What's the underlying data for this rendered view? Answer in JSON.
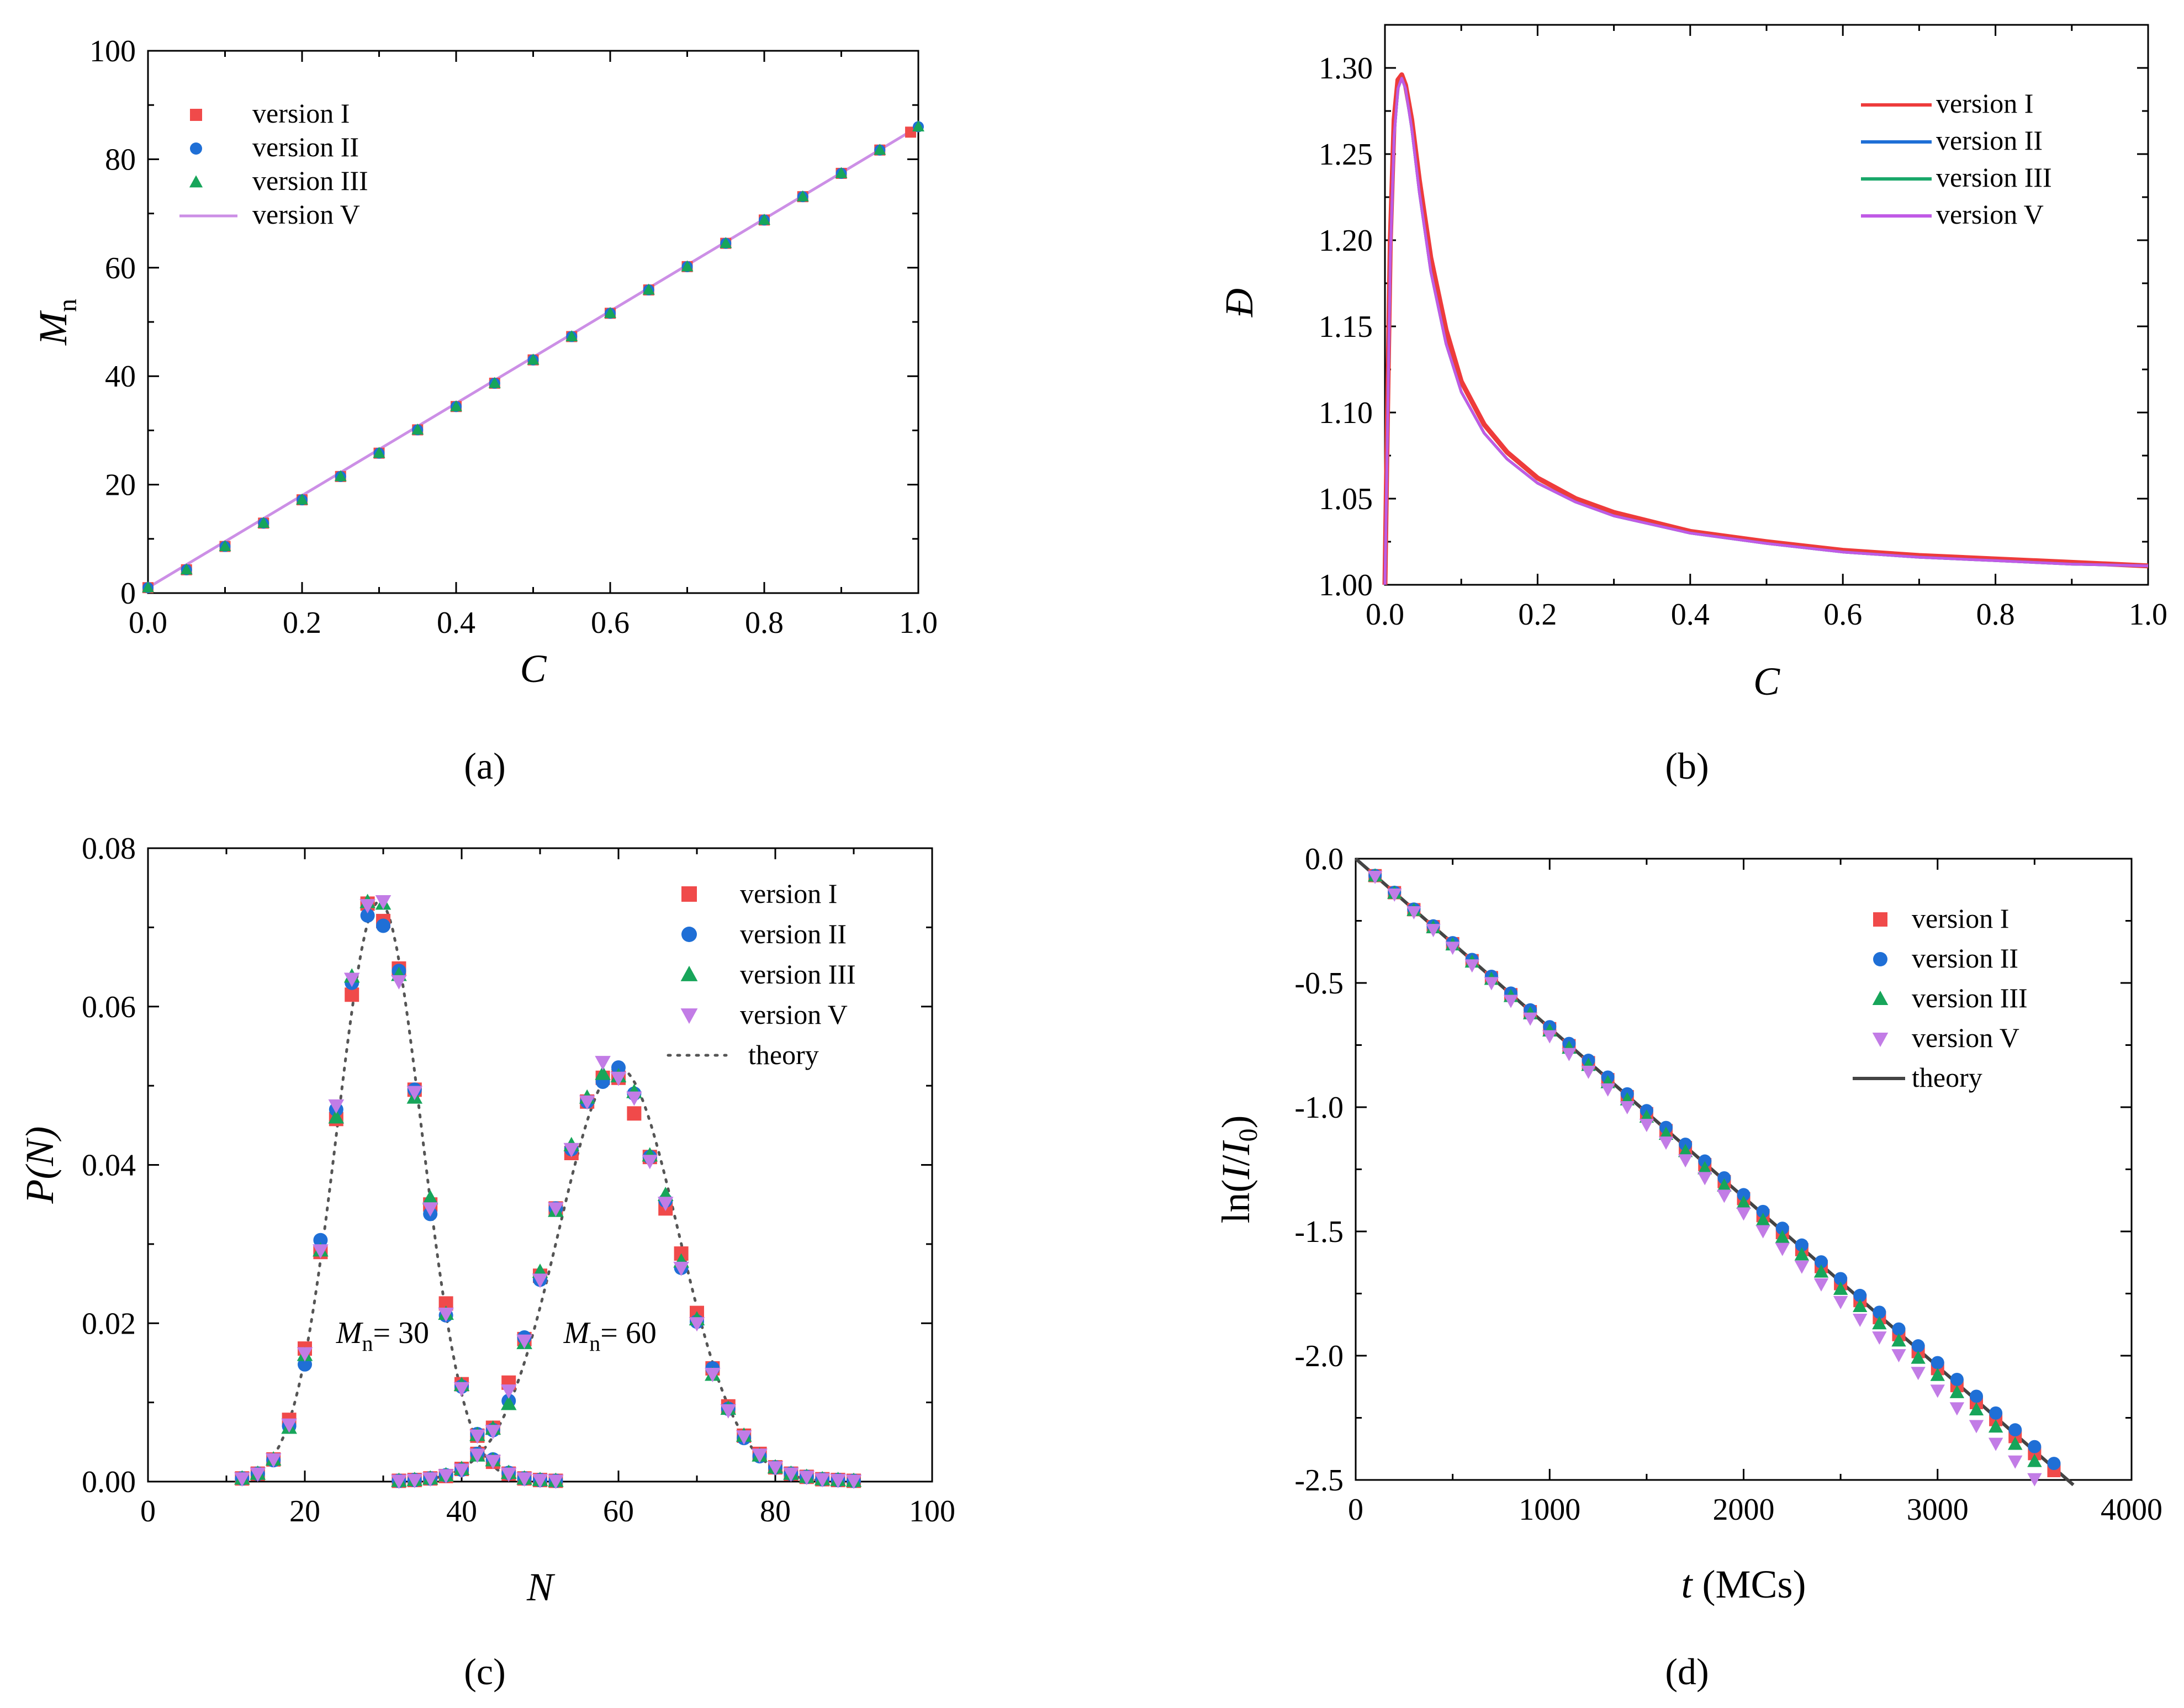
{
  "figure": {
    "panel_labels": [
      "(a)",
      "(b)",
      "(c)",
      "(d)"
    ],
    "colors": {
      "version_I": "#f04a4a",
      "version_II": "#1f6fd6",
      "version_III": "#17a55a",
      "version_V": "#c27ce6",
      "theory_dotted": "#555555",
      "theory_solid": "#444444",
      "a_line": "#cc8fe6",
      "b_I": "#ee3b3b",
      "b_II": "#1f6fd6",
      "b_III": "#1aa86a",
      "b_V": "#c05ae6"
    }
  },
  "chart_data": [
    {
      "id": "a",
      "type": "scatter",
      "title": "",
      "xlabel": "C",
      "ylabel": "M",
      "ylabel_sub": "n",
      "xlim": [
        0,
        1.0
      ],
      "ylim": [
        0,
        100
      ],
      "xticks": [
        "0.0",
        "0.2",
        "0.4",
        "0.6",
        "0.8",
        "1.0"
      ],
      "yticks": [
        "0",
        "20",
        "40",
        "60",
        "80",
        "100"
      ],
      "legend": [
        "version I",
        "version II",
        "version III",
        "version V"
      ],
      "series": [
        {
          "name": "version I",
          "marker": "square",
          "x": [
            0,
            0.05,
            0.1,
            0.15,
            0.2,
            0.25,
            0.3,
            0.35,
            0.4,
            0.45,
            0.5,
            0.55,
            0.6,
            0.65,
            0.7,
            0.75,
            0.8,
            0.85,
            0.9,
            0.95,
            0.99
          ],
          "y": [
            1.0,
            4.3,
            8.6,
            12.9,
            17.2,
            21.5,
            25.8,
            30.1,
            34.4,
            38.7,
            43.0,
            47.3,
            51.6,
            55.9,
            60.2,
            64.5,
            68.8,
            73.1,
            77.4,
            81.7,
            85.0
          ]
        },
        {
          "name": "version II",
          "marker": "circle",
          "x": [
            0,
            0.05,
            0.1,
            0.15,
            0.2,
            0.25,
            0.3,
            0.35,
            0.4,
            0.45,
            0.5,
            0.55,
            0.6,
            0.65,
            0.7,
            0.75,
            0.8,
            0.85,
            0.9,
            0.95,
            1.0
          ],
          "y": [
            1.0,
            4.3,
            8.6,
            12.9,
            17.2,
            21.5,
            25.8,
            30.1,
            34.4,
            38.7,
            43.0,
            47.3,
            51.6,
            55.9,
            60.2,
            64.5,
            68.8,
            73.1,
            77.4,
            81.7,
            86.0
          ]
        },
        {
          "name": "version III",
          "marker": "triangle-up",
          "x": [
            0,
            0.05,
            0.1,
            0.15,
            0.2,
            0.25,
            0.3,
            0.35,
            0.4,
            0.45,
            0.5,
            0.55,
            0.6,
            0.65,
            0.7,
            0.75,
            0.8,
            0.85,
            0.9,
            0.95,
            1.0
          ],
          "y": [
            1.0,
            4.3,
            8.6,
            12.9,
            17.2,
            21.5,
            25.8,
            30.1,
            34.4,
            38.7,
            43.0,
            47.3,
            51.6,
            55.9,
            60.2,
            64.5,
            68.8,
            73.1,
            77.4,
            81.7,
            86.0
          ]
        },
        {
          "name": "version V",
          "marker": "line",
          "x": [
            0,
            1.0
          ],
          "y": [
            1.0,
            86.0
          ]
        }
      ]
    },
    {
      "id": "b",
      "type": "line",
      "title": "",
      "xlabel": "C",
      "ylabel": "Đ",
      "xlim": [
        0,
        1.0
      ],
      "ylim": [
        1.0,
        1.325
      ],
      "xticks": [
        "0.0",
        "0.2",
        "0.4",
        "0.6",
        "0.8",
        "1.0"
      ],
      "yticks": [
        "1.00",
        "1.05",
        "1.10",
        "1.15",
        "1.20",
        "1.25",
        "1.30"
      ],
      "legend": [
        "version I",
        "version II",
        "version III",
        "version V"
      ],
      "series": [
        {
          "name": "version I",
          "x": [
            0,
            0.003,
            0.007,
            0.012,
            0.017,
            0.022,
            0.027,
            0.035,
            0.045,
            0.06,
            0.08,
            0.1,
            0.13,
            0.16,
            0.2,
            0.25,
            0.3,
            0.4,
            0.5,
            0.6,
            0.7,
            0.8,
            0.9,
            1.0
          ],
          "y": [
            1.0,
            1.09,
            1.2,
            1.27,
            1.293,
            1.296,
            1.29,
            1.27,
            1.235,
            1.19,
            1.148,
            1.118,
            1.093,
            1.077,
            1.062,
            1.05,
            1.042,
            1.031,
            1.025,
            1.02,
            1.017,
            1.015,
            1.013,
            1.011
          ]
        },
        {
          "name": "version II",
          "x": [
            0,
            0.003,
            0.007,
            0.012,
            0.017,
            0.022,
            0.027,
            0.035,
            0.045,
            0.06,
            0.08,
            0.1,
            0.13,
            0.16,
            0.2,
            0.25,
            0.3,
            0.4,
            0.5,
            0.6,
            0.7,
            0.8,
            0.9,
            1.0
          ],
          "y": [
            1.0,
            1.08,
            1.19,
            1.26,
            1.288,
            1.294,
            1.288,
            1.265,
            1.228,
            1.182,
            1.14,
            1.112,
            1.088,
            1.073,
            1.059,
            1.048,
            1.04,
            1.03,
            1.024,
            1.019,
            1.016,
            1.014,
            1.012,
            1.011
          ]
        },
        {
          "name": "version III",
          "x": [
            0,
            0.003,
            0.007,
            0.012,
            0.017,
            0.022,
            0.027,
            0.035,
            0.045,
            0.06,
            0.08,
            0.1,
            0.13,
            0.16,
            0.2,
            0.25,
            0.3,
            0.4,
            0.5,
            0.6,
            0.7,
            0.8,
            0.9,
            1.0
          ],
          "y": [
            1.0,
            1.08,
            1.19,
            1.26,
            1.288,
            1.294,
            1.288,
            1.265,
            1.228,
            1.182,
            1.14,
            1.112,
            1.088,
            1.073,
            1.059,
            1.048,
            1.04,
            1.03,
            1.024,
            1.019,
            1.016,
            1.014,
            1.012,
            1.011
          ]
        },
        {
          "name": "version V",
          "x": [
            0,
            0.003,
            0.007,
            0.012,
            0.017,
            0.022,
            0.027,
            0.035,
            0.045,
            0.06,
            0.08,
            0.1,
            0.13,
            0.16,
            0.2,
            0.25,
            0.3,
            0.4,
            0.5,
            0.6,
            0.7,
            0.8,
            0.9,
            1.0
          ],
          "y": [
            1.0,
            1.08,
            1.19,
            1.26,
            1.288,
            1.294,
            1.288,
            1.265,
            1.228,
            1.182,
            1.14,
            1.112,
            1.088,
            1.073,
            1.059,
            1.048,
            1.04,
            1.03,
            1.024,
            1.019,
            1.016,
            1.014,
            1.012,
            1.011
          ]
        }
      ]
    },
    {
      "id": "c",
      "type": "scatter",
      "title": "",
      "xlabel": "N",
      "ylabel": "P(N)",
      "xlim": [
        0,
        100
      ],
      "ylim": [
        0,
        0.08
      ],
      "xticks": [
        "0",
        "20",
        "40",
        "60",
        "80",
        "100"
      ],
      "yticks": [
        "0.00",
        "0.02",
        "0.04",
        "0.06",
        "0.08"
      ],
      "legend": [
        "version I",
        "version II",
        "version III",
        "version V",
        "theory"
      ],
      "annotations": [
        {
          "text_main": "M",
          "text_sub": "n",
          "text_rest": "= 30",
          "x": 24,
          "y": 0.0175
        },
        {
          "text_main": "M",
          "text_sub": "n",
          "text_rest": "= 60",
          "x": 53,
          "y": 0.0175
        }
      ],
      "x_points": [
        12,
        14,
        16,
        18,
        20,
        22,
        24,
        26,
        28,
        30,
        32,
        34,
        36,
        38,
        40,
        42,
        44,
        46,
        48,
        50,
        52,
        54,
        56,
        58,
        60,
        62,
        64,
        66,
        68,
        70,
        72,
        74,
        76,
        78,
        80,
        82,
        84,
        86,
        88,
        90,
        92
      ],
      "series": [
        {
          "name": "version I",
          "marker": "square",
          "y_Mn30": [
            0.0004,
            0.001,
            0.0028,
            0.0078,
            0.0168,
            0.029,
            0.0458,
            0.0615,
            0.073,
            0.0708,
            0.0648,
            0.0495,
            0.035,
            0.0225,
            0.0123,
            0.0058,
            0.0025,
            0.001,
            0.0004,
            0.0002,
            0.0001
          ],
          "y_Mn60": [
            0.0001,
            0.0002,
            0.0004,
            0.0007,
            0.0016,
            0.0035,
            0.0068,
            0.0125,
            0.018,
            0.026,
            0.0345,
            0.0415,
            0.048,
            0.051,
            0.051,
            0.0465,
            0.041,
            0.0345,
            0.0288,
            0.0213,
            0.0143,
            0.0095,
            0.0058,
            0.0035,
            0.0018,
            0.001,
            0.0006,
            0.0003,
            0.0002,
            0.0001
          ]
        },
        {
          "name": "version II",
          "marker": "circle",
          "y_Mn30": [
            0.0004,
            0.001,
            0.0027,
            0.007,
            0.0148,
            0.0305,
            0.047,
            0.063,
            0.0715,
            0.0702,
            0.0645,
            0.0495,
            0.0338,
            0.021,
            0.012,
            0.006,
            0.0028,
            0.0011,
            0.0004,
            0.0002,
            0.0001
          ],
          "y_Mn60": [
            0.0001,
            0.0002,
            0.0004,
            0.0008,
            0.0015,
            0.0035,
            0.0065,
            0.0102,
            0.0182,
            0.0255,
            0.0345,
            0.042,
            0.048,
            0.0505,
            0.0523,
            0.049,
            0.041,
            0.0355,
            0.027,
            0.0202,
            0.0143,
            0.0092,
            0.0055,
            0.0032,
            0.0018,
            0.001,
            0.0006,
            0.0003,
            0.0002,
            0.0001
          ]
        },
        {
          "name": "version III",
          "marker": "triangle-up",
          "y_Mn30": [
            0.0004,
            0.001,
            0.0028,
            0.0068,
            0.016,
            0.0292,
            0.046,
            0.0638,
            0.0732,
            0.073,
            0.064,
            0.0485,
            0.0358,
            0.0212,
            0.0122,
            0.0059,
            0.0027,
            0.0011,
            0.0004,
            0.0002,
            0.0001
          ],
          "y_Mn60": [
            0.0001,
            0.0002,
            0.0004,
            0.0008,
            0.0016,
            0.0033,
            0.0067,
            0.0098,
            0.0175,
            0.0265,
            0.0342,
            0.0425,
            0.0485,
            0.0515,
            0.0512,
            0.0492,
            0.0412,
            0.0362,
            0.0278,
            0.0205,
            0.0135,
            0.0092,
            0.0058,
            0.0033,
            0.0018,
            0.001,
            0.0006,
            0.0003,
            0.0002,
            0.0001
          ]
        },
        {
          "name": "version V",
          "marker": "triangle-down",
          "y_Mn30": [
            0.0004,
            0.001,
            0.0028,
            0.0072,
            0.0162,
            0.0292,
            0.0475,
            0.0635,
            0.0728,
            0.0733,
            0.0632,
            0.0492,
            0.0345,
            0.0212,
            0.0118,
            0.0058,
            0.0026,
            0.001,
            0.0004,
            0.0002,
            0.0001
          ],
          "y_Mn60": [
            0.0001,
            0.0002,
            0.0004,
            0.0008,
            0.0015,
            0.0034,
            0.0064,
            0.0115,
            0.0178,
            0.0255,
            0.0345,
            0.042,
            0.048,
            0.053,
            0.051,
            0.0485,
            0.0405,
            0.0352,
            0.027,
            0.02,
            0.0136,
            0.009,
            0.0057,
            0.0034,
            0.0018,
            0.001,
            0.0006,
            0.0003,
            0.0002,
            0.0001
          ]
        },
        {
          "name": "theory",
          "marker": "dotted-line",
          "curves": [
            {
              "mean": 29.5,
              "sd": 5.4,
              "amp": 0.0733
            },
            {
              "mean": 60,
              "sd": 7.6,
              "amp": 0.0523
            }
          ]
        }
      ],
      "Mn30_x_range": [
        12,
        52
      ],
      "Mn60_x_range": [
        32,
        92
      ]
    },
    {
      "id": "d",
      "type": "scatter",
      "title": "",
      "xlabel": "t (MCs)",
      "ylabel": "ln(I/I0)",
      "xlim": [
        0,
        4000
      ],
      "ylim": [
        -2.5,
        0.0
      ],
      "xticks": [
        "0",
        "1000",
        "2000",
        "3000",
        "4000"
      ],
      "yticks": [
        "0.0",
        "-0.5",
        "-1.0",
        "-1.5",
        "-2.0",
        "-2.5"
      ],
      "legend": [
        "version I",
        "version II",
        "version III",
        "version V",
        "theory"
      ],
      "series": [
        {
          "name": "version I",
          "marker": "square",
          "slope": -0.000684,
          "x_start": 100,
          "x_end": 3600,
          "x_step": 100
        },
        {
          "name": "version II",
          "marker": "circle",
          "slope": -0.000676,
          "x_start": 100,
          "x_end": 3700,
          "x_step": 100
        },
        {
          "name": "version III",
          "marker": "triangle-up",
          "slope": -0.000693,
          "x_start": 100,
          "x_end": 3500,
          "x_step": 100
        },
        {
          "name": "version V",
          "marker": "triangle-down",
          "slope": -0.000713,
          "x_start": 100,
          "x_end": 3500,
          "x_step": 100
        },
        {
          "name": "theory",
          "marker": "solid-line",
          "x": [
            0,
            3700
          ],
          "y": [
            0,
            -2.52
          ]
        }
      ]
    }
  ]
}
